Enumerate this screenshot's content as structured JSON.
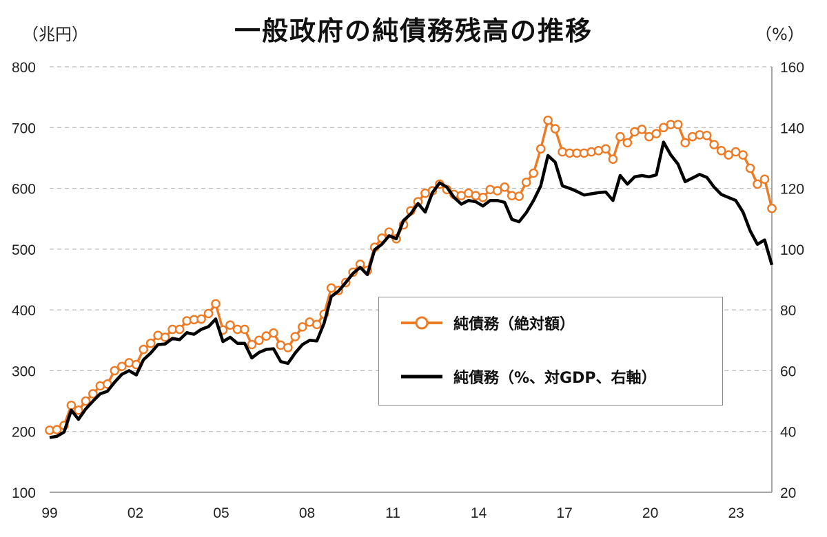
{
  "title": "一般政府の純債務残高の推移",
  "left_unit": "（兆円）",
  "right_unit": "（%）",
  "legend": {
    "series1": "純債務（絶対額）",
    "series2": "純債務（%、対GDP、右軸）"
  },
  "colors": {
    "orange": "#EE7A24",
    "black": "#000000",
    "grid": "#BBBBBB"
  },
  "chart_data": {
    "type": "line",
    "title": "一般政府の純債務残高の推移",
    "x_tick_labels": [
      "99",
      "02",
      "05",
      "08",
      "11",
      "14",
      "17",
      "20",
      "23"
    ],
    "x_range": [
      1999.0,
      2024.25
    ],
    "y_left": {
      "label": "（兆円）",
      "range": [
        100,
        800
      ],
      "ticks": [
        100,
        200,
        300,
        400,
        500,
        600,
        700,
        800
      ]
    },
    "y_right": {
      "label": "（%）",
      "range": [
        20,
        160
      ],
      "ticks": [
        20,
        40,
        60,
        80,
        100,
        120,
        140,
        160
      ]
    },
    "gridlines": true,
    "series": [
      {
        "name": "純債務（絶対額）",
        "axis": "left",
        "marker": "circle",
        "color": "#EE7A24",
        "values": [
          202,
          203,
          210,
          243,
          235,
          250,
          262,
          275,
          278,
          300,
          307,
          313,
          310,
          335,
          345,
          358,
          355,
          368,
          368,
          382,
          384,
          385,
          394,
          410,
          367,
          375,
          368,
          368,
          343,
          350,
          357,
          362,
          342,
          338,
          356,
          372,
          380,
          376,
          393,
          436,
          432,
          445,
          462,
          475,
          465,
          503,
          518,
          528,
          517,
          540,
          563,
          578,
          592,
          596,
          607,
          598,
          590,
          588,
          592,
          588,
          585,
          598,
          596,
          602,
          588,
          587,
          610,
          625,
          665,
          712,
          698,
          660,
          658,
          658,
          658,
          660,
          662,
          665,
          648,
          685,
          675,
          693,
          697,
          685,
          690,
          700,
          705,
          705,
          675,
          685,
          688,
          687,
          672,
          662,
          655,
          660,
          655,
          633,
          607,
          615,
          567
        ]
      },
      {
        "name": "純債務（%、対GDP、右軸）",
        "axis": "right",
        "marker": "none",
        "color": "#000000",
        "values": [
          38.0,
          38.4,
          39.8,
          47.0,
          44.0,
          47.4,
          50.0,
          52.4,
          53.2,
          56.2,
          58.8,
          60.0,
          58.6,
          63.6,
          65.8,
          68.6,
          68.8,
          70.6,
          70.2,
          72.5,
          72.0,
          73.6,
          74.5,
          77.0,
          69.6,
          71.0,
          69.0,
          69.0,
          64.2,
          66.0,
          67.0,
          67.2,
          63.0,
          62.4,
          65.8,
          68.6,
          70.0,
          69.8,
          75.6,
          84.4,
          86.2,
          89.0,
          92.0,
          94.0,
          91.6,
          99.8,
          101.6,
          104.4,
          103.4,
          109.4,
          111.6,
          115.0,
          112.2,
          118.6,
          121.8,
          120.4,
          117.0,
          114.8,
          116.0,
          115.6,
          114.2,
          116.0,
          116.0,
          115.4,
          109.8,
          109.0,
          112.0,
          116.0,
          120.8,
          130.8,
          128.6,
          120.8,
          120.0,
          119.0,
          117.8,
          118.2,
          118.6,
          118.8,
          116.0,
          124.2,
          121.4,
          123.8,
          124.2,
          123.8,
          124.4,
          135.2,
          131.0,
          128.0,
          122.2,
          123.4,
          124.6,
          123.6,
          120.4,
          118.0,
          117.0,
          116.0,
          112.2,
          106.0,
          101.6,
          103.0,
          94.8
        ]
      }
    ]
  }
}
